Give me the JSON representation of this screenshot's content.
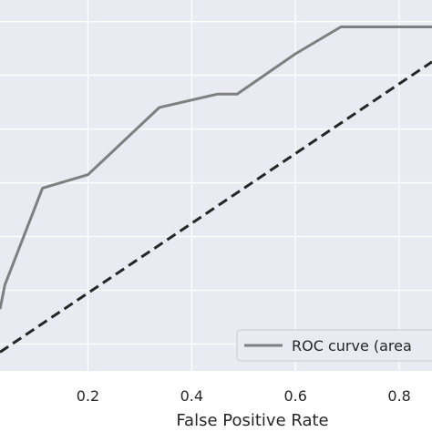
{
  "chart_data": {
    "type": "line",
    "title": "",
    "xlabel": "False Positive Rate",
    "ylabel": "",
    "xlim": [
      0.0306,
      0.863
    ],
    "ylim": [
      0.35,
      1.04
    ],
    "x_ticks": [
      0.2,
      0.4,
      0.6,
      0.8
    ],
    "x_tick_labels": [
      "0.2",
      "0.4",
      "0.6",
      "0.8"
    ],
    "grid": true,
    "background": "#eaeaf2",
    "legend": {
      "placement": "bottom-right",
      "entries": [
        "ROC curve (area"
      ]
    },
    "series": [
      {
        "name": "ROC curve (area",
        "color": "#7f7f7f",
        "style": "solid",
        "x": [
          0.0306,
          0.04,
          0.1125,
          0.2,
          0.3375,
          0.45,
          0.4875,
          0.6,
          0.6875,
          0.863
        ],
        "y": [
          0.465,
          0.51,
          0.69,
          0.715,
          0.84,
          0.865,
          0.865,
          0.94,
          0.99,
          0.99
        ]
      },
      {
        "name": "",
        "color": "#262626",
        "style": "dashed",
        "x": [
          0.0306,
          0.863
        ],
        "y": [
          0.385,
          0.925
        ]
      }
    ]
  }
}
